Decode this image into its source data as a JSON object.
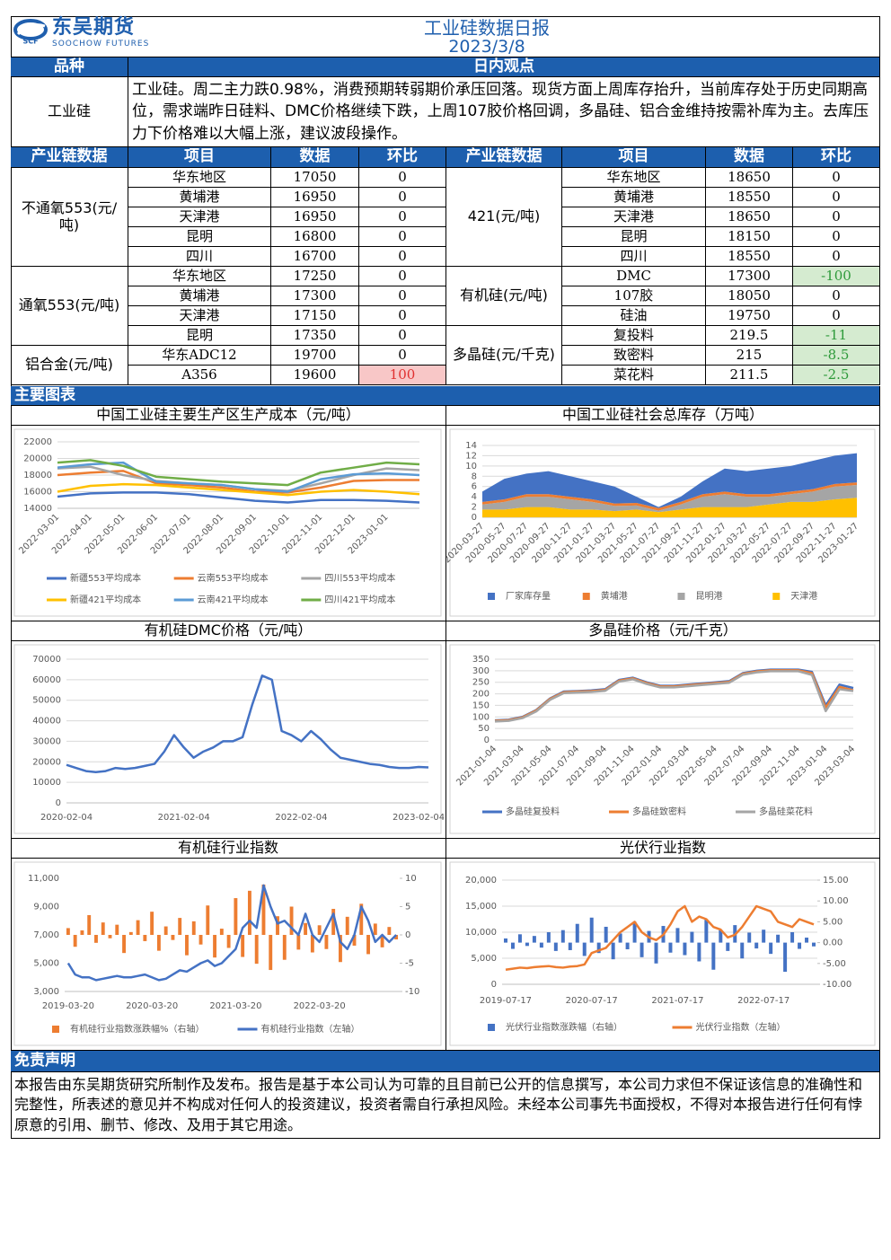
{
  "header": {
    "logo_cn": "东吴期货",
    "logo_en": "SOOCHOW FUTURES",
    "logo_mark": "SCF",
    "title": "工业硅数据日报",
    "date": "2023/3/8"
  },
  "view": {
    "headers": [
      "品种",
      "日内观点"
    ],
    "product": "工业硅",
    "text": "工业硅。周二主力跌0.98%，消费预期转弱期价承压回落。现货方面上周库存抬升，当前库存处于历史同期高位，需求端昨日硅料、DMC价格继续下跌，上周107胶价格回调，多晶硅、铝合金维持按需补库为主。去库压力下价格难以大幅上涨，建议波段操作。"
  },
  "chain_table": {
    "headers": [
      "产业链数据",
      "项目",
      "数据",
      "环比"
    ],
    "left": [
      {
        "group": "不通氧553(元/吨)",
        "rows": [
          [
            "华东地区",
            17050,
            0
          ],
          [
            "黄埔港",
            16950,
            0
          ],
          [
            "天津港",
            16950,
            0
          ],
          [
            "昆明",
            16800,
            0
          ],
          [
            "四川",
            16700,
            0
          ]
        ]
      },
      {
        "group": "通氧553(元/吨)",
        "rows": [
          [
            "华东地区",
            17250,
            0
          ],
          [
            "黄埔港",
            17300,
            0
          ],
          [
            "天津港",
            17150,
            0
          ],
          [
            "昆明",
            17350,
            0
          ]
        ]
      },
      {
        "group": "铝合金(元/吨)",
        "rows": [
          [
            "华东ADC12",
            19700,
            0
          ],
          [
            "A356",
            19600,
            100
          ]
        ]
      }
    ],
    "right": [
      {
        "group": "421(元/吨)",
        "rows": [
          [
            "华东地区",
            18650,
            0
          ],
          [
            "黄埔港",
            18550,
            0
          ],
          [
            "天津港",
            18650,
            0
          ],
          [
            "昆明",
            18150,
            0
          ],
          [
            "四川",
            18550,
            0
          ]
        ]
      },
      {
        "group": "有机硅(元/吨)",
        "rows": [
          [
            "DMC",
            17300,
            -100
          ],
          [
            "107胶",
            18050,
            0
          ],
          [
            "硅油",
            19750,
            0
          ]
        ]
      },
      {
        "group": "多晶硅(元/千克)",
        "rows": [
          [
            "复投料",
            219.5,
            -11
          ],
          [
            "致密料",
            215,
            -8.5
          ],
          [
            "菜花料",
            211.5,
            -2.5
          ]
        ]
      }
    ]
  },
  "charts_section": "主要图表",
  "chart_data": [
    {
      "type": "line",
      "title": "中国工业硅主要生产区生产成本（元/吨）",
      "grid": true,
      "categories": [
        "2022-03-01",
        "2022-04-01",
        "2022-05-01",
        "2022-06-01",
        "2022-07-01",
        "2022-08-01",
        "2022-09-01",
        "2022-10-01",
        "2022-11-01",
        "2022-12-01",
        "2023-01-01",
        null
      ],
      "ylim": [
        14000,
        22000
      ],
      "yticks": [
        14000,
        16000,
        18000,
        20000,
        22000
      ],
      "series": [
        {
          "name": "新疆553平均成本",
          "color": "#4472c4",
          "values": [
            15400,
            15800,
            15900,
            15900,
            15700,
            15300,
            14900,
            14700,
            15000,
            15000,
            14900,
            14700
          ]
        },
        {
          "name": "云南553平均成本",
          "color": "#ed7d31",
          "values": [
            18000,
            18300,
            18500,
            17000,
            16800,
            16500,
            16000,
            15900,
            16500,
            17300,
            17400,
            17400
          ]
        },
        {
          "name": "四川553平均成本",
          "color": "#a5a5a5",
          "values": [
            18800,
            19000,
            18000,
            17300,
            17000,
            16800,
            16300,
            16100,
            17000,
            18000,
            18800,
            18600
          ]
        },
        {
          "name": "新疆421平均成本",
          "color": "#ffc000",
          "values": [
            16000,
            16700,
            16900,
            16800,
            16500,
            16200,
            15900,
            15600,
            16000,
            16200,
            16000,
            15700
          ]
        },
        {
          "name": "云南421平均成本",
          "color": "#5b9bd5",
          "values": [
            18900,
            19300,
            19500,
            17200,
            17000,
            16800,
            16300,
            16000,
            17500,
            18100,
            18200,
            18000
          ]
        },
        {
          "name": "四川421平均成本",
          "color": "#70ad47",
          "values": [
            19500,
            19800,
            19100,
            17800,
            17500,
            17200,
            17000,
            16800,
            18300,
            18900,
            19500,
            19300
          ]
        }
      ]
    },
    {
      "type": "area",
      "stacked": true,
      "title": "中国工业硅社会总库存（万吨）",
      "grid": true,
      "categories": [
        "2020-03-27",
        "2020-05-27",
        "2020-07-27",
        "2020-09-27",
        "2020-11-27",
        "2021-01-27",
        "2021-03-27",
        "2021-05-27",
        "2021-07-27",
        "2021-09-27",
        "2021-11-27",
        "2022-01-27",
        "2022-03-27",
        "2022-05-27",
        "2022-07-27",
        "2022-09-27",
        "2022-11-27",
        "2023-01-27"
      ],
      "ylim": [
        0,
        14
      ],
      "yticks": [
        0,
        2,
        4,
        6,
        8,
        10,
        12,
        14
      ],
      "series": [
        {
          "name": "厂家库存量",
          "color": "#4472c4",
          "values": [
            2,
            4,
            4,
            4.5,
            4,
            3.5,
            3.3,
            1.2,
            0.2,
            1,
            2.5,
            4.5,
            4.5,
            5,
            5,
            5.5,
            5.5,
            5.7
          ]
        },
        {
          "name": "黄埔港",
          "color": "#ed7d31",
          "values": [
            0.5,
            0.5,
            0.5,
            0.5,
            0.5,
            0.5,
            0.5,
            0.5,
            0.5,
            0.5,
            0.5,
            0.5,
            0.5,
            0.5,
            0.5,
            0.5,
            0.5,
            0.5
          ]
        },
        {
          "name": "昆明港",
          "color": "#a5a5a5",
          "values": [
            1,
            1.5,
            2,
            2,
            2,
            1.5,
            1,
            0.8,
            0.3,
            1,
            2,
            2.5,
            2,
            1.5,
            1.5,
            2,
            2.5,
            2.5
          ]
        },
        {
          "name": "天津港",
          "color": "#ffc000",
          "values": [
            1.5,
            1.5,
            2,
            2,
            1.5,
            1.5,
            1.2,
            1.5,
            1,
            1.5,
            2,
            2,
            2,
            2.5,
            3,
            3,
            3.5,
            3.8
          ]
        }
      ]
    },
    {
      "type": "line",
      "title": "有机硅DMC价格（元/吨）",
      "grid": true,
      "categories": [
        "2020-02-04",
        null,
        null,
        null,
        null,
        null,
        null,
        null,
        null,
        null,
        null,
        null,
        "2021-02-04",
        null,
        null,
        null,
        null,
        null,
        null,
        null,
        null,
        null,
        null,
        null,
        "2022-02-04",
        null,
        null,
        null,
        null,
        null,
        null,
        null,
        null,
        null,
        null,
        null,
        "2023-02-04",
        null
      ],
      "ylim": [
        0,
        70000
      ],
      "yticks": [
        0,
        10000,
        20000,
        30000,
        40000,
        50000,
        60000,
        70000
      ],
      "series": [
        {
          "name": "DMC",
          "color": "#4472c4",
          "values": [
            18500,
            17000,
            15500,
            15000,
            15500,
            17000,
            16500,
            17000,
            18000,
            19000,
            25000,
            33000,
            27000,
            22000,
            25000,
            27000,
            30000,
            30000,
            32000,
            48000,
            62000,
            60000,
            35000,
            33000,
            30000,
            35000,
            31000,
            26000,
            22000,
            21000,
            20000,
            19000,
            18500,
            17500,
            17000,
            17000,
            17500,
            17300
          ]
        }
      ]
    },
    {
      "type": "line",
      "title": "多晶硅价格（元/千克）",
      "grid": true,
      "categories": [
        "2021-01-04",
        null,
        "2021-03-04",
        null,
        "2021-05-04",
        null,
        "2021-07-04",
        null,
        "2021-09-04",
        null,
        "2021-11-04",
        null,
        "2022-01-04",
        null,
        "2022-03-04",
        null,
        "2022-05-04",
        null,
        "2022-07-04",
        null,
        "2022-09-04",
        null,
        "2022-11-04",
        null,
        "2023-01-04",
        null,
        "2023-03-04"
      ],
      "ylim": [
        0,
        350
      ],
      "yticks": [
        0,
        50,
        100,
        150,
        200,
        250,
        300,
        350
      ],
      "series": [
        {
          "name": "多晶硅复投料",
          "color": "#4472c4",
          "values": [
            85,
            88,
            100,
            130,
            180,
            210,
            212,
            215,
            220,
            260,
            270,
            250,
            235,
            235,
            240,
            245,
            250,
            255,
            290,
            300,
            305,
            305,
            305,
            295,
            150,
            240,
            225
          ]
        },
        {
          "name": "多晶硅致密料",
          "color": "#ed7d31",
          "values": [
            83,
            86,
            98,
            128,
            178,
            207,
            210,
            212,
            217,
            257,
            267,
            247,
            232,
            232,
            237,
            242,
            247,
            252,
            287,
            297,
            302,
            302,
            302,
            290,
            140,
            230,
            215
          ]
        },
        {
          "name": "多晶硅菜花料",
          "color": "#a5a5a5",
          "values": [
            80,
            83,
            95,
            124,
            174,
            203,
            206,
            208,
            213,
            253,
            263,
            243,
            228,
            228,
            233,
            238,
            243,
            248,
            283,
            293,
            298,
            298,
            298,
            282,
            125,
            220,
            212
          ]
        }
      ]
    },
    {
      "type": "combo",
      "title": "有机硅行业指数",
      "grid": false,
      "categories": [
        "2019-03-20",
        null,
        null,
        null,
        null,
        null,
        null,
        null,
        null,
        null,
        null,
        null,
        "2020-03-20",
        null,
        null,
        null,
        null,
        null,
        null,
        null,
        null,
        null,
        null,
        null,
        "2021-03-20",
        null,
        null,
        null,
        null,
        null,
        null,
        null,
        null,
        null,
        null,
        null,
        "2022-03-20",
        null,
        null,
        null,
        null,
        null,
        null,
        null,
        null,
        null,
        null,
        null
      ],
      "ylim": [
        3000,
        11000
      ],
      "yticks": [
        {
          "value": 3000,
          "label": "3,000"
        },
        {
          "value": 5000,
          "label": "5,000"
        },
        {
          "value": 7000,
          "label": "7,000"
        },
        {
          "value": 9000,
          "label": "9,000"
        },
        {
          "value": 11000,
          "label": "11,000"
        }
      ],
      "y2lim": [
        -10,
        10
      ],
      "y2ticks": [
        -10,
        -5,
        0,
        5,
        10
      ],
      "series": [
        {
          "name": "有机硅行业指数涨跌幅%（右轴）",
          "type": "bar",
          "axis": "y2",
          "color": "#ed7d31",
          "values": [
            1.2,
            -2.1,
            0.8,
            3.5,
            -1.4,
            2.2,
            -0.6,
            1.8,
            -3.2,
            0.5,
            2.6,
            -1.1,
            4.1,
            -2.8,
            1.5,
            -0.9,
            3.0,
            -3.6,
            2.4,
            -1.7,
            5.2,
            -4.0,
            1.1,
            -2.3,
            6.5,
            -3.9,
            7.8,
            -5.1,
            8.9,
            -6.2,
            3.3,
            -4.4,
            5.0,
            -2.6,
            2.1,
            -3.1,
            1.7,
            -2.5,
            4.6,
            -4.8,
            3.2,
            -1.9,
            5.5,
            -3.4,
            2.0,
            -2.2,
            1.4,
            -0.8
          ]
        },
        {
          "name": "有机硅行业指数（左轴）",
          "type": "line",
          "color": "#4472c4",
          "values": [
            5000,
            4200,
            4000,
            4000,
            3800,
            3900,
            4000,
            4100,
            4000,
            4000,
            4100,
            4200,
            4000,
            3800,
            3900,
            4200,
            4500,
            4400,
            4700,
            5000,
            5200,
            4800,
            5000,
            5500,
            6000,
            7500,
            8000,
            7500,
            10500,
            9000,
            7800,
            8000,
            7500,
            7000,
            8500,
            7000,
            6500,
            7500,
            8500,
            6500,
            6000,
            7000,
            9000,
            8000,
            6500,
            7000,
            6500,
            7000
          ]
        }
      ]
    },
    {
      "type": "combo",
      "title": "光伏行业指数",
      "grid": true,
      "categories": [
        "2019-07-17",
        null,
        null,
        null,
        null,
        null,
        null,
        null,
        null,
        null,
        null,
        null,
        "2020-07-17",
        null,
        null,
        null,
        null,
        null,
        null,
        null,
        null,
        null,
        null,
        null,
        "2021-07-17",
        null,
        null,
        null,
        null,
        null,
        null,
        null,
        null,
        null,
        null,
        null,
        "2022-07-17",
        null,
        null,
        null,
        null,
        null,
        null,
        null
      ],
      "ylim": [
        0,
        20000
      ],
      "yticks": [
        0,
        {
          "value": 5000,
          "label": "5,000"
        },
        {
          "value": 10000,
          "label": "10,000"
        },
        {
          "value": 15000,
          "label": "15,000"
        },
        {
          "value": 20000,
          "label": "20,000"
        }
      ],
      "y2lim": [
        -10,
        15
      ],
      "y2ticks": [
        {
          "value": -10,
          "label": "-10.00"
        },
        {
          "value": -5,
          "label": "-5.00"
        },
        {
          "value": 0,
          "label": "0.00"
        },
        {
          "value": 5,
          "label": "5.00"
        },
        {
          "value": 10,
          "label": "10.00"
        },
        {
          "value": 15,
          "label": "15.00"
        }
      ],
      "series": [
        {
          "name": "光伏行业指数涨跌幅（右轴）",
          "type": "bar",
          "axis": "y2",
          "color": "#4472c4",
          "values": [
            1.0,
            -1.5,
            2.0,
            -0.8,
            1.6,
            -1.2,
            2.5,
            -2.0,
            3.0,
            -1.8,
            4.5,
            -3.2,
            6.0,
            -2.5,
            3.8,
            -4.0,
            2.2,
            -1.6,
            5.0,
            -3.5,
            2.8,
            -5.0,
            4.0,
            -2.4,
            3.5,
            -3.0,
            2.6,
            -4.5,
            5.5,
            -6.5,
            3.0,
            -2.0,
            4.2,
            -3.8,
            2.4,
            -1.4,
            3.1,
            -2.7,
            1.9,
            -7.0,
            2.5,
            -1.5,
            1.2,
            -0.9
          ]
        },
        {
          "name": "光伏行业指数（左轴）",
          "type": "line",
          "color": "#ed7d31",
          "values": [
            2800,
            3000,
            3200,
            3100,
            3300,
            3400,
            3500,
            3300,
            3200,
            3400,
            3500,
            3800,
            6000,
            6500,
            7000,
            8500,
            10000,
            11000,
            12000,
            10000,
            9000,
            8500,
            9500,
            11500,
            14000,
            15000,
            12000,
            13000,
            12500,
            11000,
            10500,
            9000,
            9500,
            11000,
            13000,
            15000,
            14500,
            14000,
            12000,
            11500,
            11000,
            12500,
            12000,
            11500
          ]
        }
      ]
    }
  ],
  "disclaimer": {
    "title": "免责声明",
    "text": "本报告由东吴期货研究所制作及发布。报告是基于本公司认为可靠的且目前已公开的信息撰写，本公司力求但不保证该信息的准确性和完整性，所表述的意见并不构成对任何人的投资建议，投资者需自行承担风险。未经本公司事先书面授权，不得对本报告进行任何有悖原意的引用、删节、修改、及用于其它用途。"
  }
}
